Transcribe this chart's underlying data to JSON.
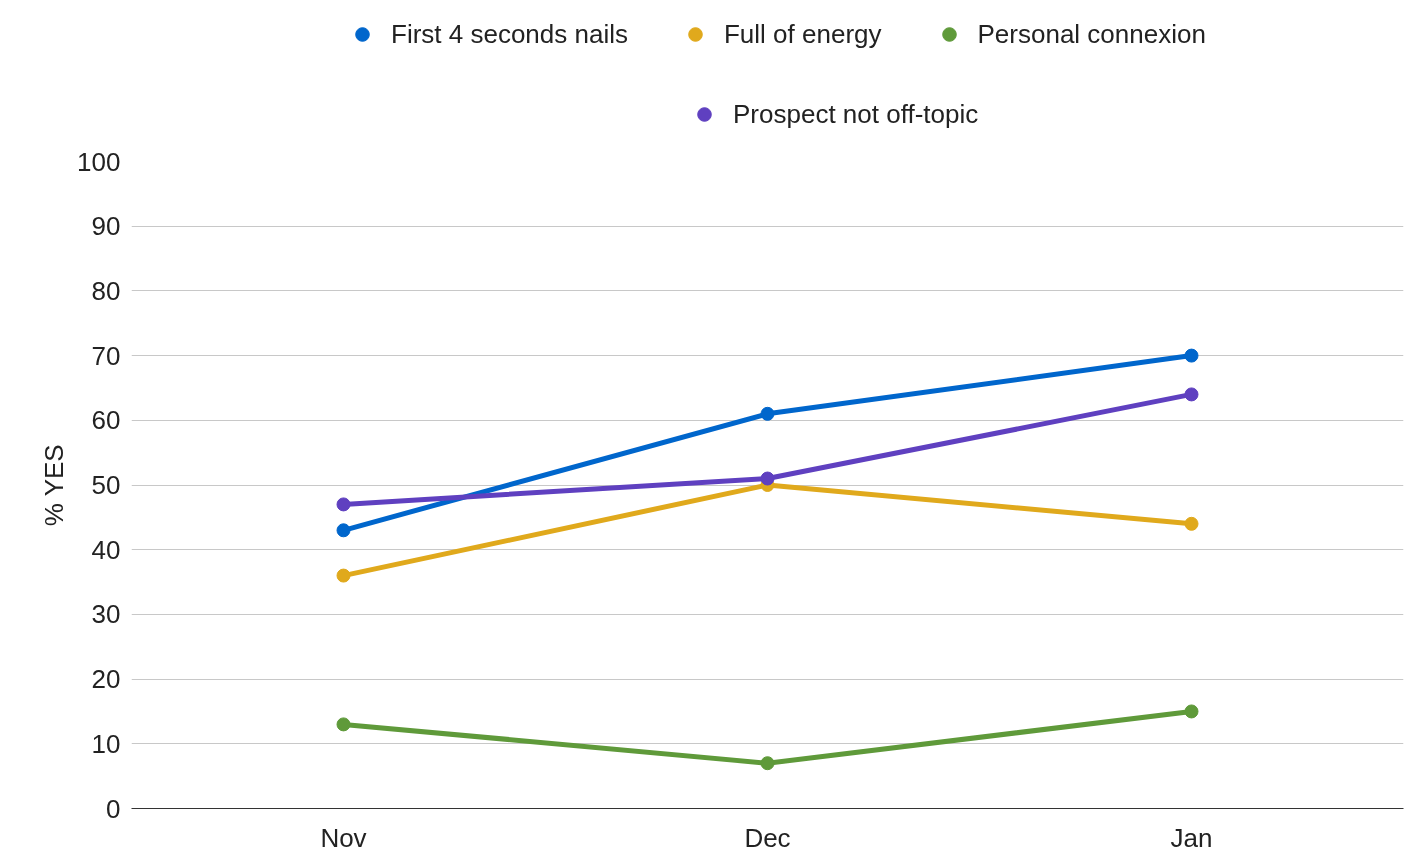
{
  "chart_data": {
    "type": "line",
    "ylabel": "% YES",
    "categories": [
      "Nov",
      "Dec",
      "Jan"
    ],
    "series": [
      {
        "name": "First 4 seconds nails",
        "color": "#0066cc",
        "values": [
          43,
          61,
          70
        ]
      },
      {
        "name": "Full of energy",
        "color": "#e0a91c",
        "values": [
          36,
          50,
          44
        ]
      },
      {
        "name": "Personal connexion",
        "color": "#5f9a3a",
        "values": [
          13,
          7,
          15
        ]
      },
      {
        "name": "Prospect not off-topic",
        "color": "#5f40c0",
        "values": [
          47,
          51,
          64
        ]
      }
    ],
    "ylim": [
      0,
      100
    ],
    "yticks": [
      0,
      10,
      20,
      30,
      40,
      50,
      60,
      70,
      80,
      90,
      100
    ],
    "grid": "y",
    "legend": "top",
    "marker": "circle",
    "line_style": "solid"
  }
}
